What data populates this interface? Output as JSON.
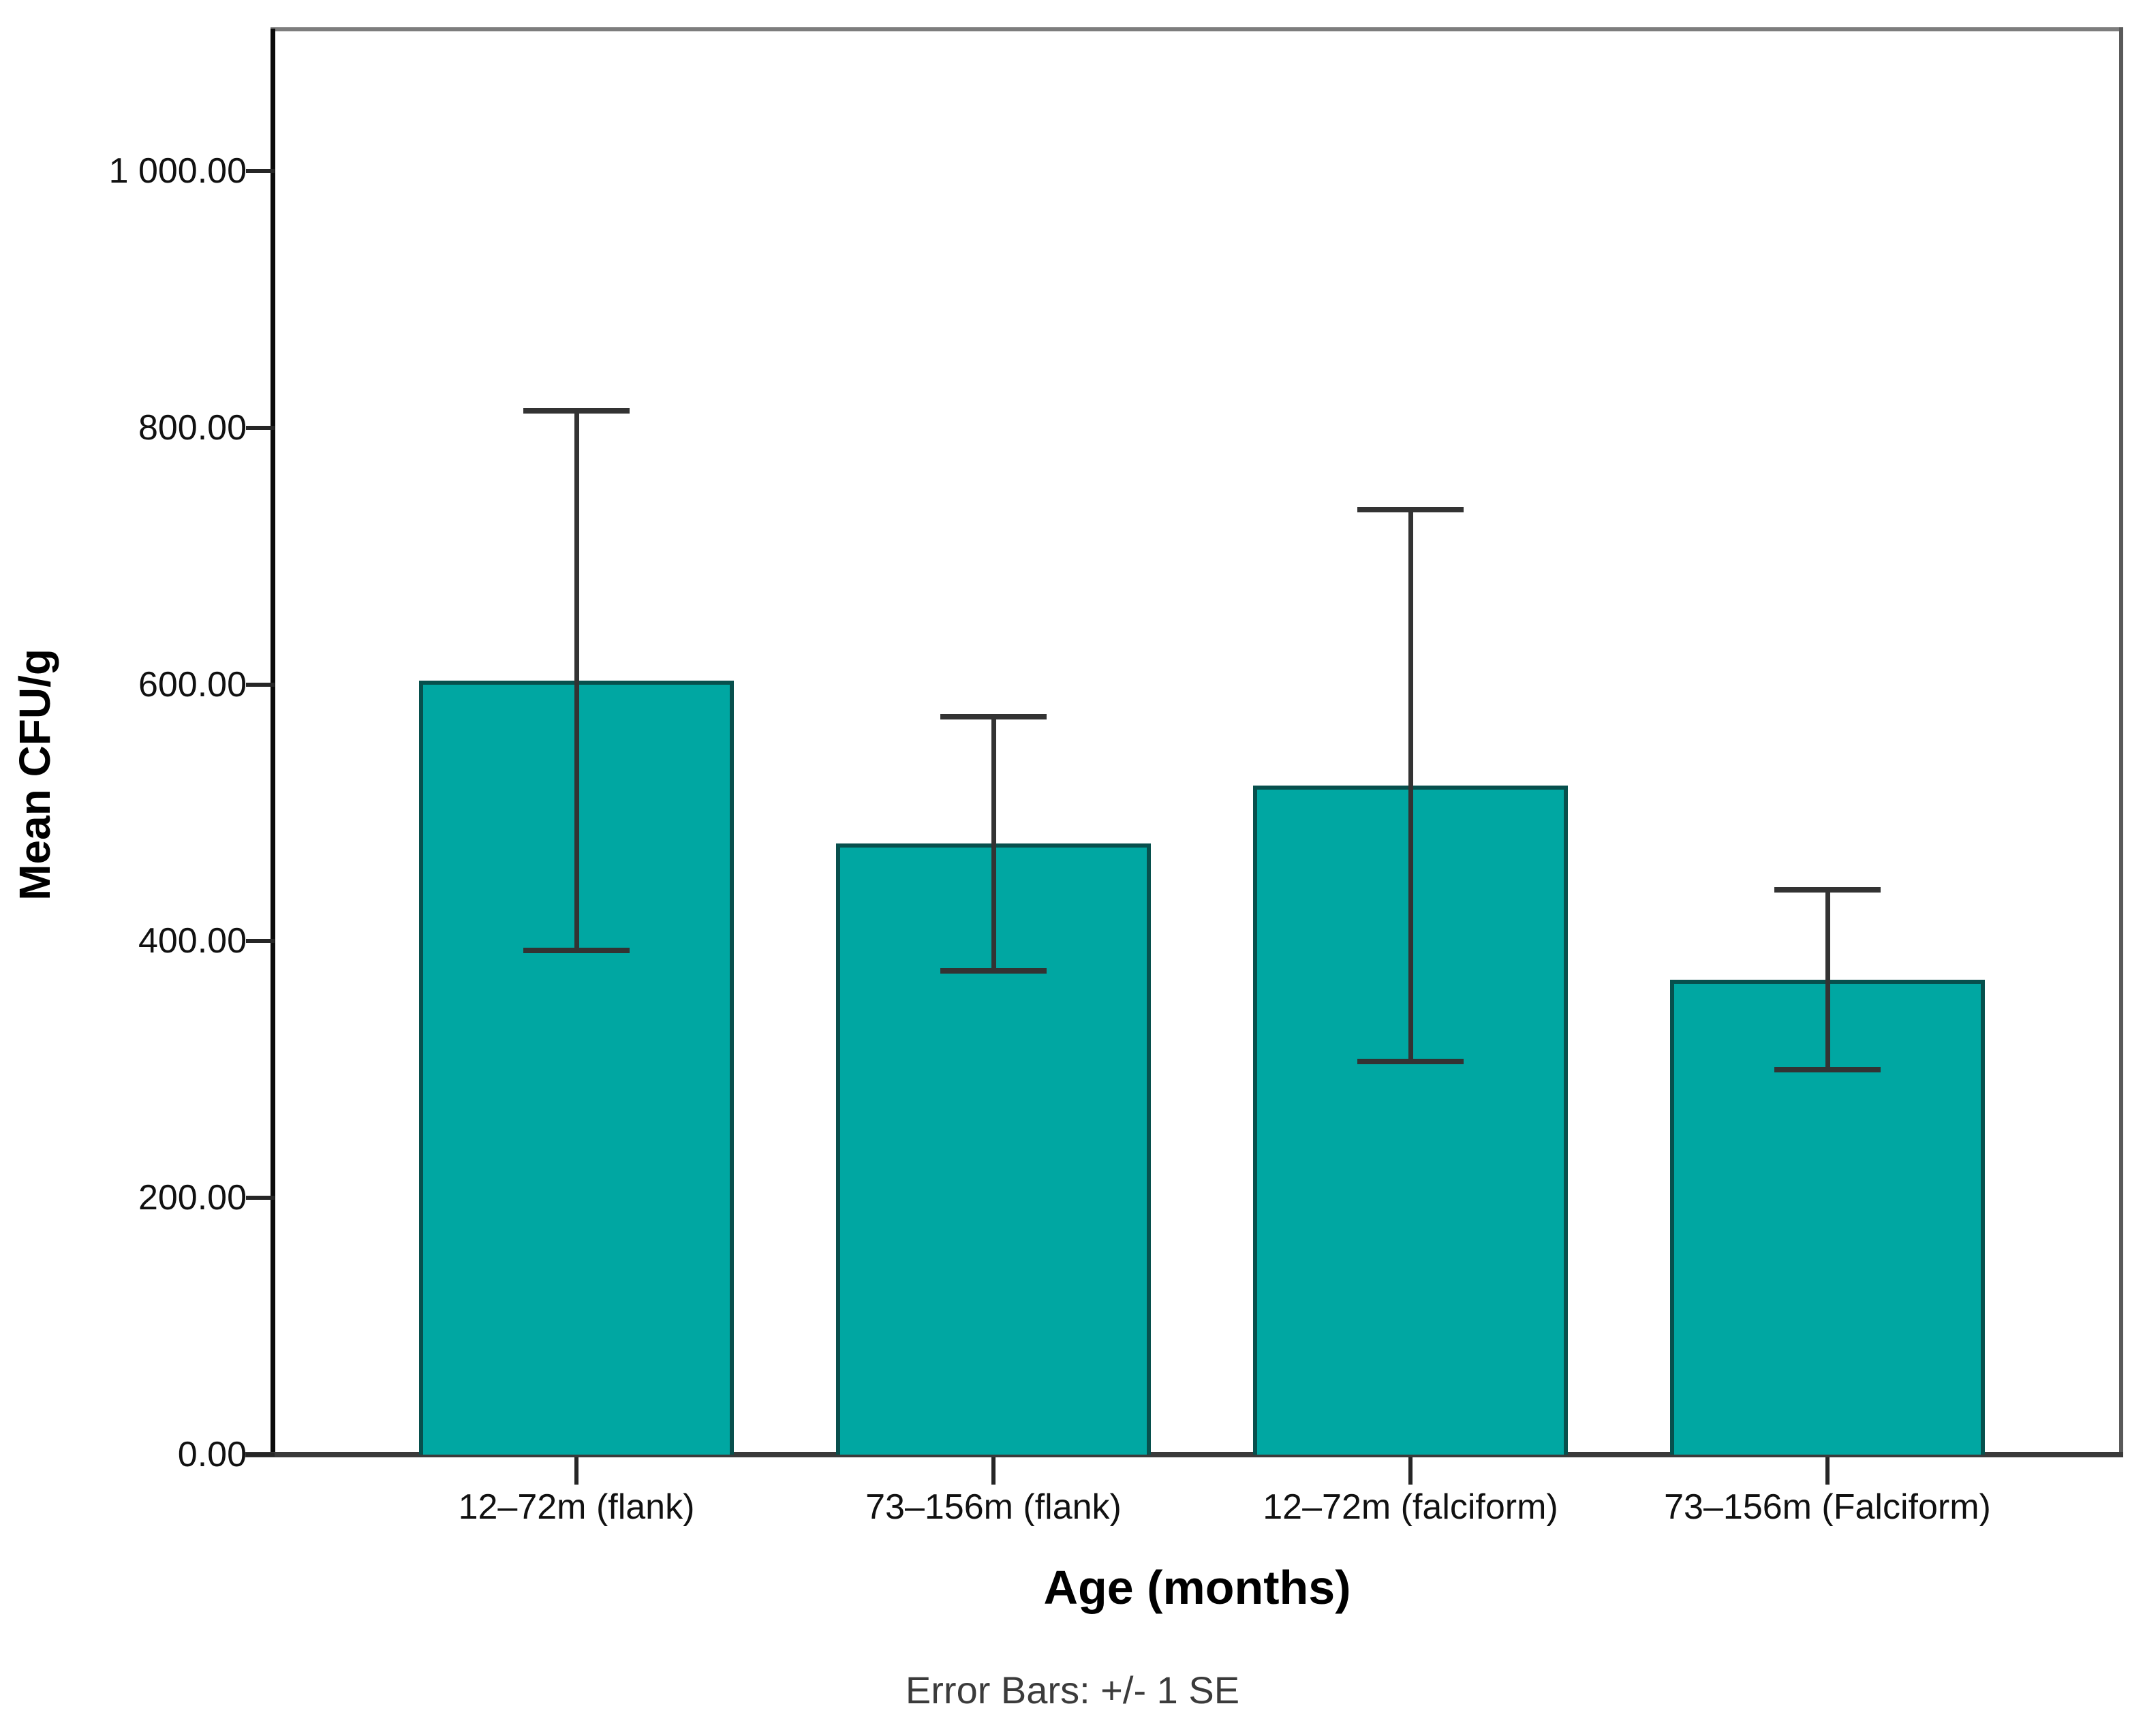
{
  "figure": {
    "background_color": "#ffffff"
  },
  "chart_data": {
    "type": "bar",
    "title": "",
    "xlabel": "Age (months)",
    "ylabel": "Mean CFU/g",
    "footnote": "Error Bars: +/- 1 SE",
    "categories": [
      "12–72m (flank)",
      "73–156m (flank)",
      "12–72m (falciform)",
      "73–156m (Falciform)"
    ],
    "series": [
      {
        "name": "Mean CFU/g",
        "values": [
          603,
          476,
          521,
          370
        ],
        "standard_errors": [
          210,
          99,
          215,
          70
        ]
      }
    ],
    "error_bar_note": "+/- 1 SE",
    "ylim": [
      0,
      1110
    ],
    "yticks": [
      0,
      200,
      400,
      600,
      800,
      1000
    ],
    "ytick_labels": [
      "0.00",
      "200.00",
      "400.00",
      "600.00",
      "800.00",
      "1 000.00"
    ],
    "grid": false,
    "legend": false,
    "bar_fill_color": "#00a7a2",
    "bar_border_color": "#07504d",
    "error_bar_color": "#333333",
    "axis_color": "#0a0a0a",
    "frame_color": "#7d7d7d"
  }
}
